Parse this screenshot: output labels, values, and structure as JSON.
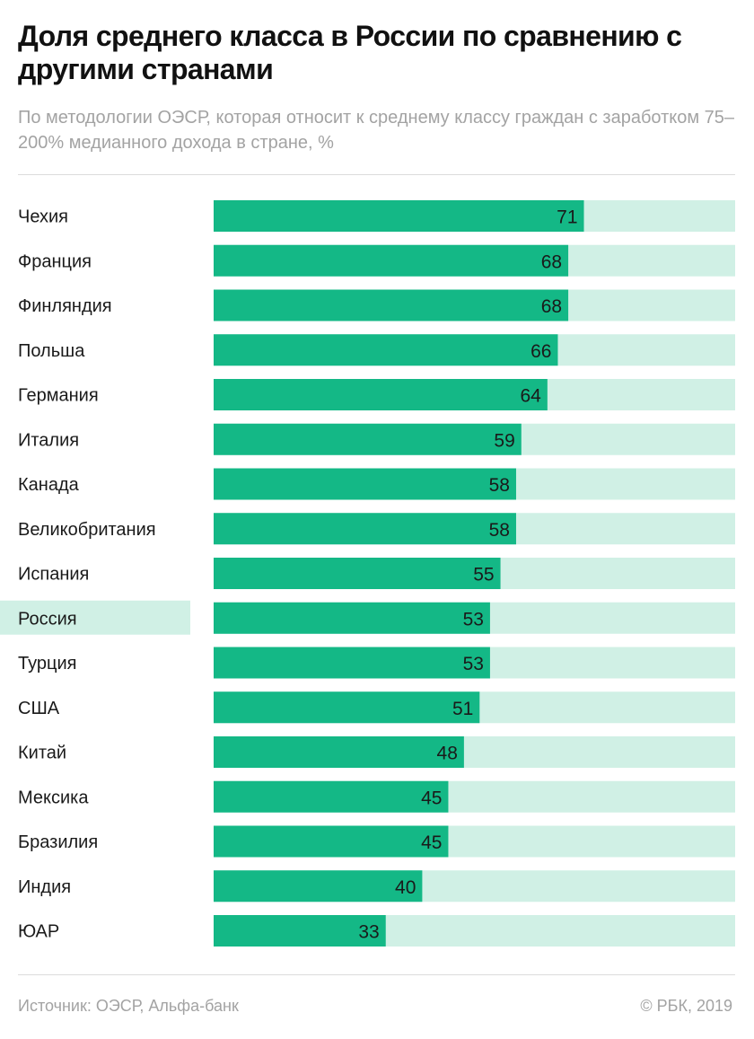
{
  "chart_data": {
    "type": "bar",
    "orientation": "horizontal",
    "title": "Доля среднего класса в России по сравнению с другими странами",
    "subtitle": "По методологии ОЭСР, которая относит к среднему классу граждан с заработком 75–200% медианного дохода в стране, %",
    "categories": [
      "Чехия",
      "Франция",
      "Финляндия",
      "Польша",
      "Германия",
      "Италия",
      "Канада",
      "Великобритания",
      "Испания",
      "Россия",
      "Турция",
      "США",
      "Китай",
      "Мексика",
      "Бразилия",
      "Индия",
      "ЮАР"
    ],
    "values": [
      71,
      68,
      68,
      66,
      64,
      59,
      58,
      58,
      55,
      53,
      53,
      51,
      48,
      45,
      45,
      40,
      33
    ],
    "highlighted_category": "Россия",
    "xlim": [
      0,
      100
    ],
    "grid": false,
    "legend": "none",
    "colors": {
      "bar": "#14b886",
      "track": "#d0f0e5",
      "highlight": "#d0f0e5"
    }
  },
  "footer": {
    "source": "Источник: ОЭСР, Альфа-банк",
    "copyright": "© РБК, 2019"
  }
}
